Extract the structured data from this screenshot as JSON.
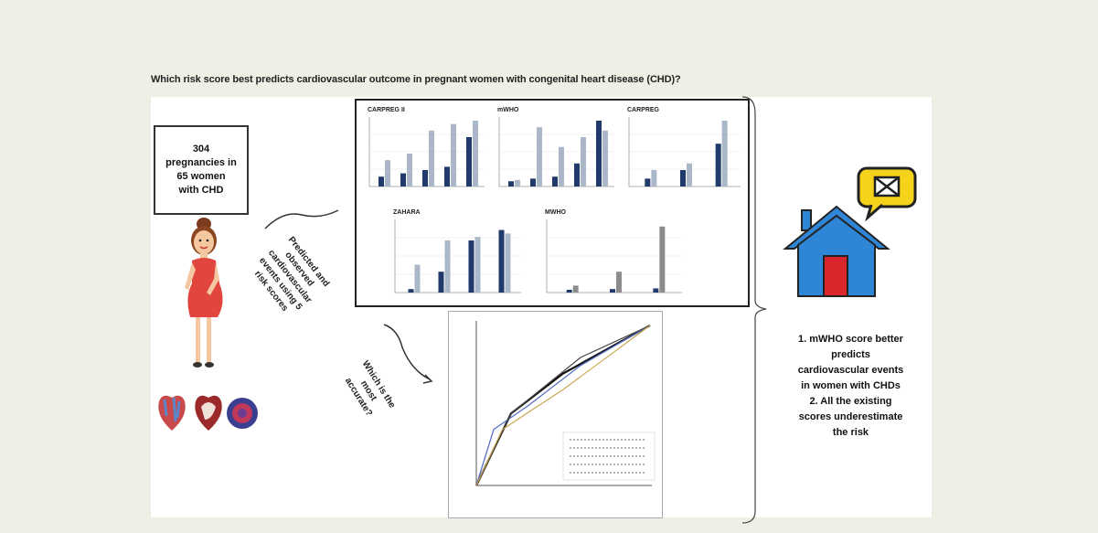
{
  "title": "Which risk score best predicts cardiovascular outcome in pregnant women with congenital heart disease (CHD)?",
  "cohort": {
    "line1": "304",
    "line2": "pregnancies in",
    "line3": "65 women",
    "line4": "with CHD"
  },
  "arrow_label_1": [
    "Predicted and",
    "observed",
    "cardiovascular",
    "events using 5",
    "risk scores"
  ],
  "arrow_label_2": [
    "Which is the",
    "most",
    "accurate?"
  ],
  "conclusions": [
    "1. mWHO score better",
    "predicts",
    "cardiovascular events",
    "in women with CHDs",
    "2. All the existing",
    "scores underestimate",
    "the risk"
  ],
  "colors": {
    "dark_bar": "#1f3a6b",
    "light_bar": "#a9b7c9",
    "gray_bar": "#8c8c8c",
    "house_blue": "#2f86d6",
    "house_red": "#d9262c",
    "bubble_yellow": "#f5d31a",
    "dress_red": "#e0463e"
  },
  "icons": [
    "pregnant-woman-icon",
    "heart-anatomy-icon",
    "house-icon",
    "envelope-bubble-icon"
  ],
  "chart_data": [
    {
      "type": "bar",
      "title": "CARPREG II",
      "series": [
        {
          "name": "",
          "values": [
            0.15,
            0.2,
            0.25,
            0.3,
            0.75
          ]
        },
        {
          "name": "",
          "values": [
            0.4,
            0.5,
            0.85,
            0.95,
            1.0
          ]
        }
      ]
    },
    {
      "type": "bar",
      "title": "mWHO",
      "series": [
        {
          "name": "",
          "values": [
            0.08,
            0.12,
            0.15,
            0.35,
            1.0
          ]
        },
        {
          "name": "",
          "values": [
            0.1,
            0.9,
            0.6,
            0.75,
            0.85
          ]
        }
      ]
    },
    {
      "type": "bar",
      "title": "CARPREG",
      "series": [
        {
          "name": "",
          "values": [
            0.12,
            0.25,
            0.65
          ]
        },
        {
          "name": "",
          "values": [
            0.25,
            0.35,
            1.0
          ]
        }
      ]
    },
    {
      "type": "bar",
      "title": "ZAHARA",
      "series": [
        {
          "name": "",
          "values": [
            0.05,
            0.3,
            0.75,
            0.9
          ]
        },
        {
          "name": "",
          "values": [
            0.4,
            0.75,
            0.8,
            0.85
          ]
        }
      ]
    },
    {
      "type": "bar",
      "title": "MWHO",
      "series": [
        {
          "name": "",
          "values": [
            0.04,
            0.05,
            0.06
          ]
        },
        {
          "name": "",
          "values": [
            0.1,
            0.3,
            0.95
          ]
        }
      ]
    },
    {
      "type": "line",
      "title": "",
      "series": [
        {
          "name": "",
          "x": [
            0,
            0.2,
            0.5,
            1
          ],
          "y": [
            0,
            0.45,
            0.7,
            1
          ]
        },
        {
          "name": "",
          "x": [
            0,
            0.1,
            0.3,
            0.6,
            1
          ],
          "y": [
            0,
            0.35,
            0.5,
            0.75,
            1
          ]
        },
        {
          "name": "",
          "x": [
            0,
            0.2,
            0.6,
            1
          ],
          "y": [
            0,
            0.45,
            0.8,
            1
          ]
        },
        {
          "name": "",
          "x": [
            0,
            0.15,
            0.5,
            1
          ],
          "y": [
            0,
            0.35,
            0.6,
            1
          ]
        }
      ]
    }
  ]
}
